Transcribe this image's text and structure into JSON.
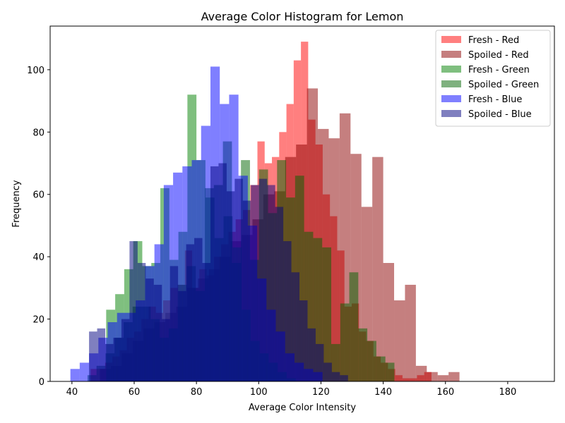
{
  "chart_data": {
    "type": "bar",
    "subtype": "overlaid-histogram",
    "title": "Average Color Histogram for Lemon",
    "xlabel": "Average Color Intensity",
    "ylabel": "Frequency",
    "xlim": [
      33,
      195
    ],
    "ylim": [
      0,
      114
    ],
    "xticks": [
      40,
      60,
      80,
      100,
      120,
      140,
      160,
      180
    ],
    "yticks": [
      0,
      20,
      40,
      60,
      80,
      100
    ],
    "grid": false,
    "legend_position": "upper right",
    "legend": [
      "Fresh - Red",
      "Spoiled - Red",
      "Fresh - Green",
      "Spoiled - Green",
      "Fresh - Blue",
      "Spoiled - Blue"
    ],
    "series": [
      {
        "name": "Fresh - Red",
        "color": "#ff0000",
        "opacity": 0.5,
        "bin_start": 46.0,
        "bin_width": 2.33,
        "counts": [
          4,
          4,
          6,
          8,
          10,
          14,
          16,
          20,
          24,
          22,
          26,
          30,
          31,
          42,
          30,
          36,
          34,
          40,
          44,
          48,
          52,
          55,
          63,
          77,
          70,
          72,
          80,
          89,
          103,
          109,
          84,
          76,
          60,
          53,
          42,
          24,
          25,
          16,
          13,
          8,
          6,
          4,
          2,
          1,
          1,
          2,
          3
        ]
      },
      {
        "name": "Spoiled - Red",
        "color": "#8b0000",
        "opacity": 0.5,
        "bin_start": 49.0,
        "bin_width": 3.5,
        "counts": [
          4,
          5,
          9,
          13,
          17,
          19,
          22,
          24,
          30,
          33,
          36,
          40,
          45,
          47,
          52,
          60,
          61,
          72,
          76,
          94,
          81,
          78,
          86,
          73,
          56,
          72,
          38,
          26,
          31,
          5,
          3,
          2,
          3
        ]
      },
      {
        "name": "Fresh - Green",
        "color": "#008000",
        "opacity": 0.5,
        "bin_start": 51.0,
        "bin_width": 2.9,
        "counts": [
          23,
          28,
          36,
          45,
          37,
          38,
          62,
          39,
          48,
          92,
          71,
          59,
          46,
          53,
          43,
          23,
          13,
          9,
          6,
          3,
          1
        ]
      },
      {
        "name": "Spoiled - Green",
        "color": "#006400",
        "opacity": 0.5,
        "bin_start": 45.0,
        "bin_width": 2.9,
        "counts": [
          2,
          5,
          9,
          14,
          19,
          24,
          24,
          20,
          14,
          17,
          31,
          37,
          29,
          62,
          63,
          77,
          38,
          71,
          39,
          68,
          54,
          71,
          59,
          66,
          48,
          46,
          43,
          12,
          25,
          35,
          17,
          13,
          8,
          6
        ]
      },
      {
        "name": "Fresh - Blue",
        "color": "#0000ff",
        "opacity": 0.5,
        "bin_start": 39.5,
        "bin_width": 3.0,
        "counts": [
          4,
          6,
          9,
          14,
          19,
          22,
          22,
          26,
          37,
          44,
          63,
          67,
          69,
          71,
          82,
          101,
          89,
          92,
          66,
          50,
          33,
          23,
          16,
          9,
          6,
          4,
          3
        ]
      },
      {
        "name": "Spoiled - Blue",
        "color": "#000080",
        "opacity": 0.5,
        "bin_start": 45.5,
        "bin_width": 2.6,
        "counts": [
          16,
          17,
          12,
          14,
          20,
          45,
          38,
          33,
          31,
          20,
          37,
          29,
          44,
          46,
          38,
          69,
          70,
          61,
          65,
          58,
          63,
          65,
          63,
          56,
          45,
          35,
          26,
          17,
          12,
          6,
          3,
          2
        ]
      }
    ]
  }
}
